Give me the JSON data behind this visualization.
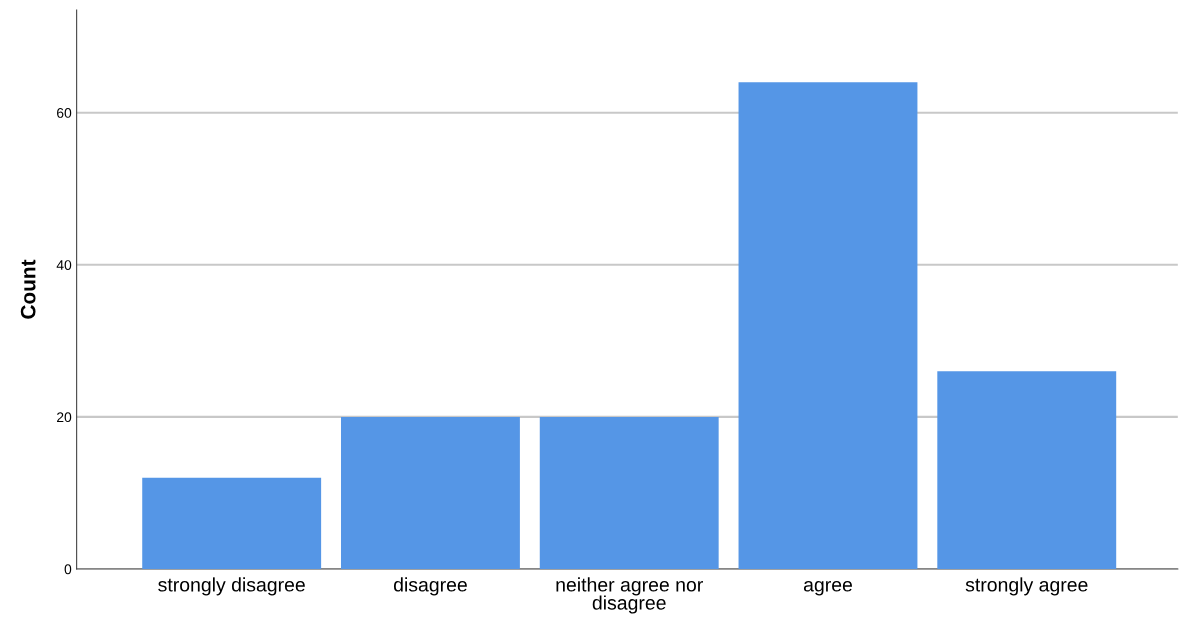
{
  "chart_data": {
    "type": "bar",
    "ylabel": "Count",
    "categories": [
      "strongly disagree",
      "disagree",
      "neither agree nor\ndisagree",
      "agree",
      "strongly agree"
    ],
    "values": [
      12,
      20,
      20,
      64,
      26
    ],
    "color": "#5596e6",
    "ylim": [
      0,
      73.5
    ],
    "yticks": [
      0,
      20,
      40,
      60
    ],
    "grid": "y",
    "legend": false
  }
}
